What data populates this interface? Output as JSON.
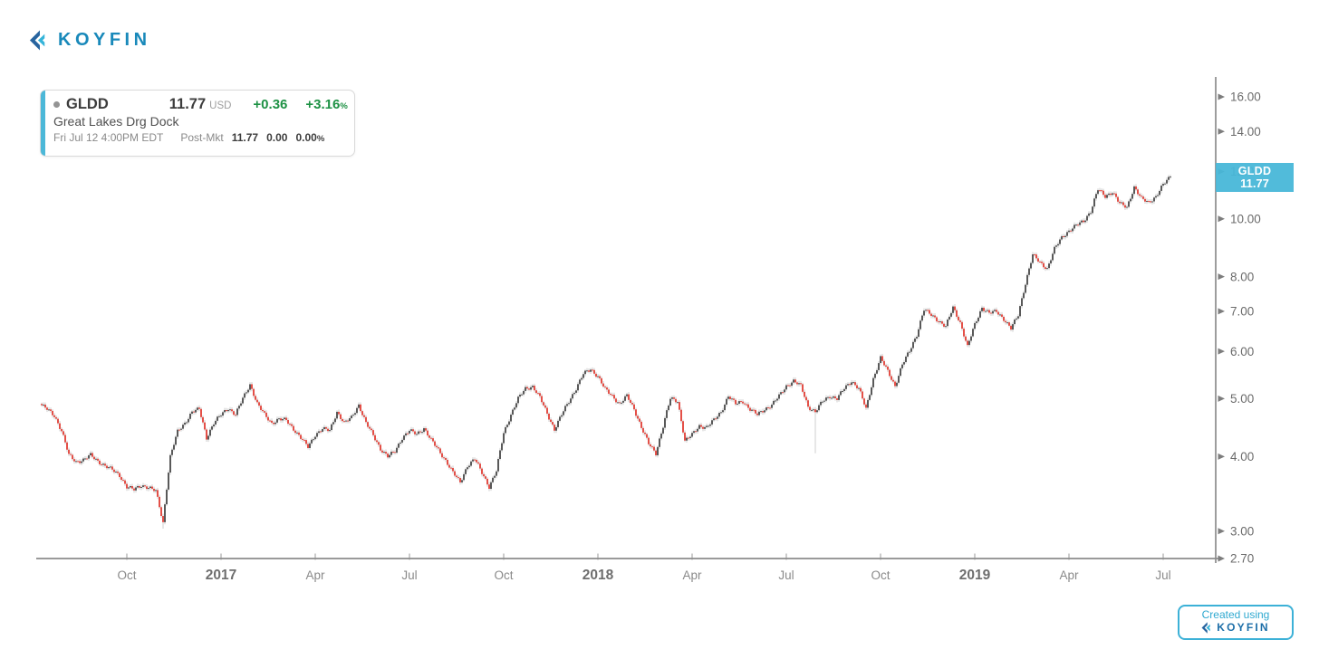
{
  "brand": {
    "logo_text": "KOYFIN",
    "badge_line1": "Created using",
    "badge_logo_text": "KOYFIN"
  },
  "quote": {
    "ticker": "GLDD",
    "price": "11.77",
    "currency": "USD",
    "change": "+0.36",
    "change_pct": "+3.16",
    "pct_symbol": "%",
    "name": "Great Lakes Drg Dock",
    "session": "Fri Jul 12 4:00PM EDT",
    "postmkt_label": "Post-Mkt",
    "postmkt_price": "11.77",
    "postmkt_change": "0.00",
    "postmkt_change_pct": "0.00"
  },
  "price_label": {
    "ticker": "GLDD",
    "price": "11.77"
  },
  "chart_data": {
    "type": "candlestick",
    "ticker": "GLDD",
    "title": "GLDD Great Lakes Drg Dock price history",
    "y_scale": "log",
    "ylim": [
      2.7,
      16.9
    ],
    "grid": false,
    "legend_position": "none",
    "start_date": "2016-07-15",
    "end_date": "2019-07-12",
    "interval": "weekly_approx",
    "last_price": 11.77,
    "y_ticks": [
      {
        "label": "16.00",
        "value": 16
      },
      {
        "label": "14.00",
        "value": 14
      },
      {
        "label": "12.00",
        "value": 12
      },
      {
        "label": "10.00",
        "value": 10
      },
      {
        "label": "8.00",
        "value": 8
      },
      {
        "label": "7.00",
        "value": 7
      },
      {
        "label": "6.00",
        "value": 6
      },
      {
        "label": "5.00",
        "value": 5
      },
      {
        "label": "4.00",
        "value": 4
      },
      {
        "label": "3.00",
        "value": 3
      },
      {
        "label": "2.70",
        "value": 2.7
      }
    ],
    "x_ticks": [
      {
        "label": "Oct",
        "week": 12,
        "year": false
      },
      {
        "label": "2017",
        "week": 25,
        "year": true
      },
      {
        "label": "Apr",
        "week": 38,
        "year": false
      },
      {
        "label": "Jul",
        "week": 51,
        "year": false
      },
      {
        "label": "Oct",
        "week": 64,
        "year": false
      },
      {
        "label": "2018",
        "week": 77,
        "year": true
      },
      {
        "label": "Apr",
        "week": 90,
        "year": false
      },
      {
        "label": "Jul",
        "week": 103,
        "year": false
      },
      {
        "label": "Oct",
        "week": 116,
        "year": false
      },
      {
        "label": "2019",
        "week": 129,
        "year": true
      },
      {
        "label": "Apr",
        "week": 142,
        "year": false
      },
      {
        "label": "Jul",
        "week": 155,
        "year": false
      }
    ],
    "weekly_closes": [
      4.9,
      4.8,
      4.68,
      4.42,
      4.02,
      3.92,
      3.95,
      4.02,
      3.93,
      3.86,
      3.8,
      3.72,
      3.56,
      3.52,
      3.58,
      3.55,
      3.5,
      3.1,
      4.0,
      4.4,
      4.55,
      4.75,
      4.8,
      4.3,
      4.55,
      4.7,
      4.82,
      4.7,
      5.0,
      5.28,
      4.9,
      4.7,
      4.55,
      4.62,
      4.6,
      4.45,
      4.3,
      4.15,
      4.35,
      4.45,
      4.42,
      4.75,
      4.55,
      4.65,
      4.88,
      4.55,
      4.34,
      4.12,
      4.0,
      4.08,
      4.3,
      4.42,
      4.36,
      4.46,
      4.26,
      4.1,
      3.94,
      3.76,
      3.62,
      3.86,
      3.96,
      3.76,
      3.56,
      3.78,
      4.38,
      4.7,
      5.0,
      5.2,
      5.24,
      5.02,
      4.72,
      4.44,
      4.7,
      4.95,
      5.2,
      5.5,
      5.6,
      5.45,
      5.18,
      5.05,
      4.9,
      5.05,
      4.8,
      4.48,
      4.2,
      4.05,
      4.5,
      5.0,
      4.95,
      4.25,
      4.35,
      4.5,
      4.48,
      4.6,
      4.75,
      5.05,
      4.9,
      4.95,
      4.8,
      4.7,
      4.8,
      4.88,
      5.05,
      5.25,
      5.35,
      5.25,
      4.85,
      4.75,
      4.95,
      5.05,
      5.0,
      5.2,
      5.35,
      5.2,
      4.8,
      5.4,
      5.85,
      5.55,
      5.25,
      5.7,
      6.0,
      6.4,
      7.05,
      6.9,
      6.75,
      6.6,
      7.1,
      6.7,
      6.1,
      6.65,
      7.1,
      6.95,
      7.0,
      6.8,
      6.55,
      6.9,
      7.8,
      8.7,
      8.45,
      8.25,
      8.9,
      9.3,
      9.55,
      9.75,
      9.9,
      10.3,
      11.2,
      10.9,
      11.1,
      10.6,
      10.45,
      11.3,
      10.8,
      10.65,
      10.9,
      11.4,
      11.77
    ],
    "wick_events": [
      {
        "week": 17,
        "low": 3.03
      },
      {
        "week": 107,
        "low": 4.05
      }
    ],
    "colors": {
      "up": "#474747",
      "down": "#e23d34",
      "wick": "#c3c3c3",
      "axis": "#8c8c8c",
      "tick_text": "#6b6b6b",
      "month_text": "#8a8a8a",
      "label_bg": "#4cb8d8"
    }
  }
}
